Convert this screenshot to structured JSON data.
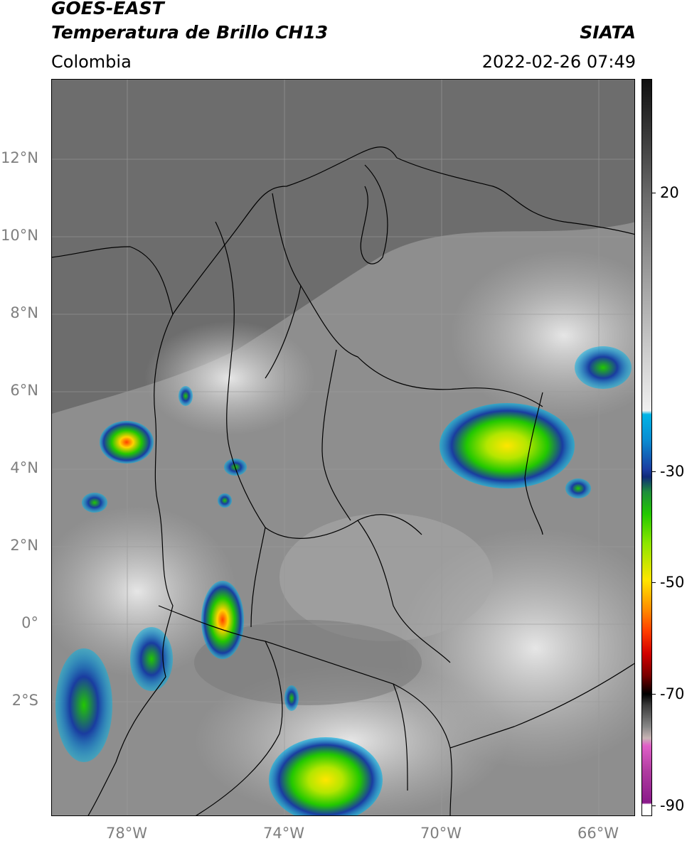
{
  "header": {
    "satellite": "GOES-EAST",
    "product": "Temperatura de Brillo CH13",
    "region": "Colombia",
    "source": "SIATA",
    "datetime": "2022-02-26 07:49"
  },
  "map": {
    "lat_labels": [
      "12°N",
      "10°N",
      "8°N",
      "6°N",
      "4°N",
      "2°N",
      "0°",
      "2°S"
    ],
    "lon_labels": [
      "78°W",
      "74°W",
      "70°W",
      "66°W"
    ],
    "gridlines": true
  },
  "colorbar": {
    "labels": [
      "20",
      "-30",
      "-50",
      "-70",
      "-90"
    ],
    "range": [
      -92,
      42
    ],
    "colors": {
      "warm_gray": "#6b6b6b",
      "cyan": "#00b4e6",
      "blue": "#1a3ca0",
      "green": "#22c800",
      "yellow": "#ffe600",
      "orange": "#ff8c00",
      "red": "#d20000",
      "black": "#000000",
      "pink": "#e060c8",
      "purple": "#8a1a8a"
    }
  }
}
